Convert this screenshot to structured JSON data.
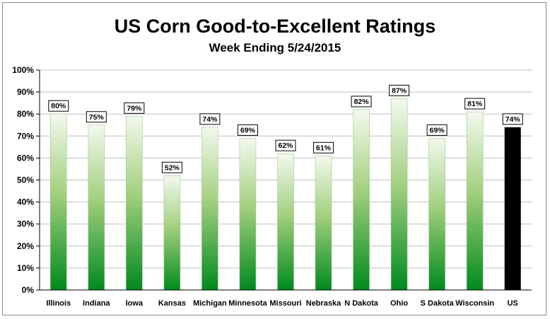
{
  "chart_data": {
    "type": "bar",
    "title": "US Corn Good-to-Excellent Ratings",
    "subtitle": "Week Ending 5/24/2015",
    "categories": [
      "Illinois",
      "Indiana",
      "Iowa",
      "Kansas",
      "Michigan",
      "Minnesota",
      "Missouri",
      "Nebraska",
      "N Dakota",
      "Ohio",
      "S Dakota",
      "Wisconsin",
      "US"
    ],
    "values": [
      80,
      75,
      79,
      52,
      74,
      69,
      62,
      61,
      82,
      87,
      69,
      81,
      74
    ],
    "data_labels": [
      "80%",
      "75%",
      "79%",
      "52%",
      "74%",
      "69%",
      "62%",
      "61%",
      "82%",
      "87%",
      "69%",
      "81%",
      "74%"
    ],
    "yticks": [
      "0%",
      "10%",
      "20%",
      "30%",
      "40%",
      "50%",
      "60%",
      "70%",
      "80%",
      "90%",
      "100%"
    ],
    "ylim": [
      0,
      100
    ],
    "grid": true,
    "legend": "none",
    "colors": {
      "state_gradient_top": "#f2f9ee",
      "state_gradient_mid": "#a3d07f",
      "state_gradient_bottom": "#008a1d",
      "us_bar": "#000000",
      "gridline": "#bfbfbf"
    }
  }
}
